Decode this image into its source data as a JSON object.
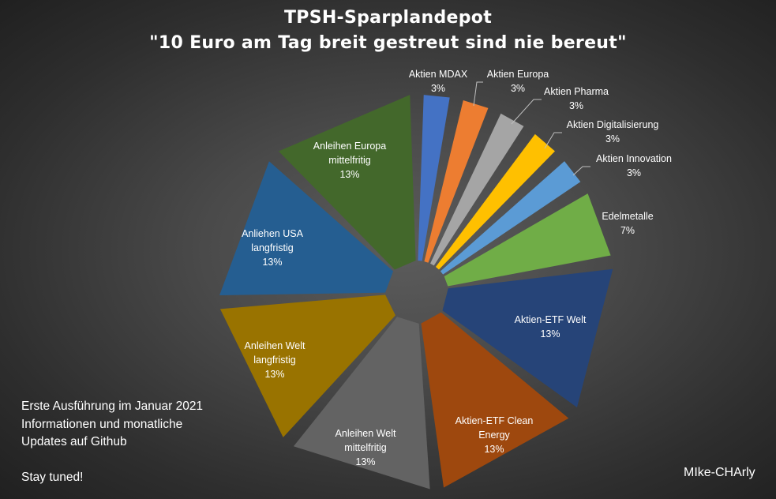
{
  "chart_data": {
    "type": "pie",
    "variant": "exploded",
    "title": "TPSH-Sparplandepot",
    "subtitle": "\"10 Euro am Tag breit gestreut sind nie bereut\"",
    "slices": [
      {
        "label": "Aktien MDAX",
        "value_label": "3%",
        "value": 3.33,
        "color": "#4472c4"
      },
      {
        "label": "Aktien Europa",
        "value_label": "3%",
        "value": 3.33,
        "color": "#ed7d31"
      },
      {
        "label": "Aktien Pharma",
        "value_label": "3%",
        "value": 3.33,
        "color": "#a5a5a5"
      },
      {
        "label": "Aktien Digitalisierung",
        "value_label": "3%",
        "value": 3.33,
        "color": "#ffc000"
      },
      {
        "label": "Aktien Innovation",
        "value_label": "3%",
        "value": 3.33,
        "color": "#5b9bd5"
      },
      {
        "label": "Edelmetalle",
        "value_label": "7%",
        "value": 6.67,
        "color": "#70ad47"
      },
      {
        "label": "Aktien-ETF Welt",
        "value_label": "13%",
        "value": 13.33,
        "color": "#264478"
      },
      {
        "label": "Aktien-ETF Clean Energy",
        "value_label": "13%",
        "value": 13.33,
        "color": "#9e480e"
      },
      {
        "label": "Anleihen Welt mittelfritig",
        "value_label": "13%",
        "value": 13.33,
        "color": "#636363"
      },
      {
        "label": "Anleihen Welt langfristig",
        "value_label": "13%",
        "value": 13.33,
        "color": "#997300"
      },
      {
        "label": "Anliehen USA langfristig",
        "value_label": "13%",
        "value": 13.33,
        "color": "#255e91"
      },
      {
        "label": "Anleihen Europa mittelfritig",
        "value_label": "13%",
        "value": 13.33,
        "color": "#43682b"
      }
    ],
    "legend": "none"
  },
  "notes": {
    "line1": "Erste Ausführung im Januar 2021",
    "line2": "Informationen und monatliche",
    "line3": "Updates auf Github",
    "line4": "Stay tuned!"
  },
  "author": "MIke-CHArly"
}
